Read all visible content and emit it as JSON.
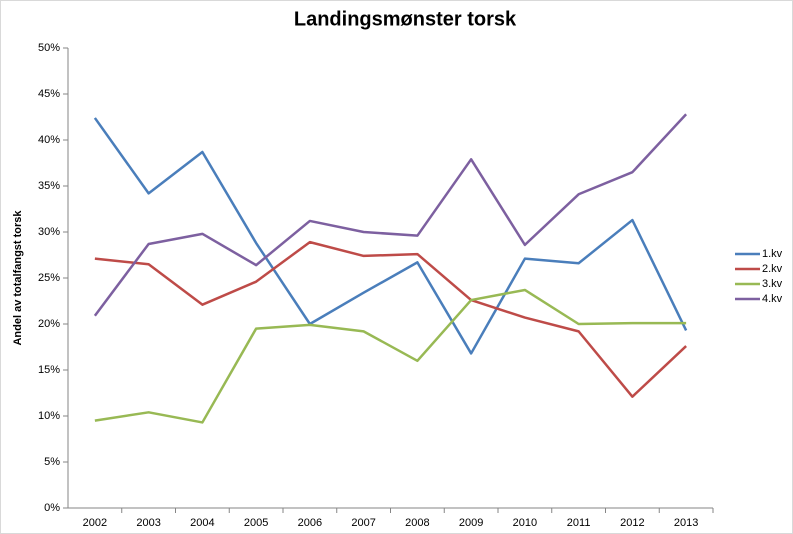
{
  "chart_data": {
    "type": "line",
    "title": "Landingsmønster torsk",
    "y_label": "Andel av totalfangst torsk",
    "categories": [
      "2002",
      "2003",
      "2004",
      "2005",
      "2006",
      "2007",
      "2008",
      "2009",
      "2010",
      "2011",
      "2012",
      "2013"
    ],
    "series": [
      {
        "name": "1.kv",
        "color": "#4a7ebb",
        "values": [
          42.4,
          34.2,
          38.7,
          28.8,
          20.0,
          23.4,
          26.7,
          16.8,
          27.1,
          26.6,
          31.3,
          19.3
        ]
      },
      {
        "name": "2.kv",
        "color": "#be4b48",
        "values": [
          27.1,
          26.5,
          22.1,
          24.6,
          28.9,
          27.4,
          27.6,
          22.6,
          20.7,
          19.2,
          12.1,
          17.6
        ]
      },
      {
        "name": "3.kv",
        "color": "#98b954",
        "values": [
          9.5,
          10.4,
          9.3,
          19.5,
          19.9,
          19.2,
          16.0,
          22.6,
          23.7,
          20.0,
          20.1,
          20.1
        ]
      },
      {
        "name": "4.kv",
        "color": "#7d60a0",
        "values": [
          20.9,
          28.7,
          29.8,
          26.4,
          31.2,
          30.0,
          29.6,
          37.9,
          28.6,
          34.1,
          36.5,
          42.8
        ]
      }
    ],
    "ylim": [
      0,
      50
    ],
    "yticks": [
      {
        "value": 0,
        "label": "0%"
      },
      {
        "value": 5,
        "label": "5%"
      },
      {
        "value": 10,
        "label": "10%"
      },
      {
        "value": 15,
        "label": "15%"
      },
      {
        "value": 20,
        "label": "20%"
      },
      {
        "value": 25,
        "label": "25%"
      },
      {
        "value": 30,
        "label": "30%"
      },
      {
        "value": 35,
        "label": "35%"
      },
      {
        "value": 40,
        "label": "40%"
      },
      {
        "value": 45,
        "label": "45%"
      },
      {
        "value": 50,
        "label": "50%"
      }
    ],
    "grid": false,
    "legend": "right"
  }
}
